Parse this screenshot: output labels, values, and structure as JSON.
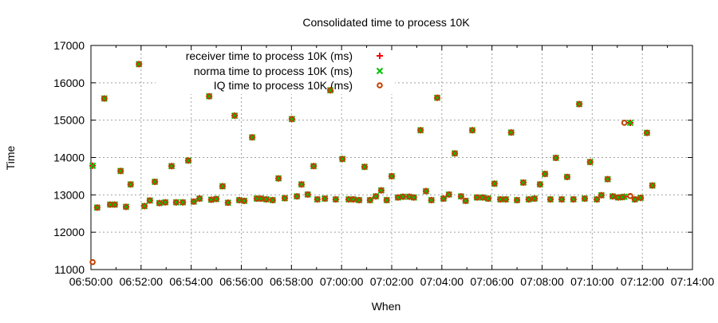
{
  "chart_data": {
    "type": "scatter",
    "title": "Consolidated time to process 10K",
    "xlabel": "When",
    "ylabel": "Time",
    "xlim": [
      "06:50:00",
      "07:14:00"
    ],
    "ylim": [
      11000,
      17000
    ],
    "x_ticks": [
      "06:50:00",
      "06:52:00",
      "06:54:00",
      "06:56:00",
      "06:58:00",
      "07:00:00",
      "07:02:00",
      "07:04:00",
      "07:06:00",
      "07:08:00",
      "07:10:00",
      "07:12:00",
      "07:14:00"
    ],
    "y_ticks": [
      "11000",
      "12000",
      "13000",
      "14000",
      "15000",
      "16000",
      "17000"
    ],
    "grid": true,
    "legend_position": "top-left",
    "x": [
      "06:50:04",
      "06:50:15",
      "06:50:32",
      "06:50:46",
      "06:50:57",
      "06:51:11",
      "06:51:24",
      "06:51:35",
      "06:51:55",
      "06:52:08",
      "06:52:21",
      "06:52:33",
      "06:52:44",
      "06:52:58",
      "06:53:13",
      "06:53:24",
      "06:53:40",
      "06:53:53",
      "06:54:06",
      "06:54:20",
      "06:54:43",
      "06:54:48",
      "06:55:00",
      "06:55:15",
      "06:55:28",
      "06:55:44",
      "06:55:55",
      "06:56:07",
      "06:56:26",
      "06:56:37",
      "06:56:47",
      "06:57:00",
      "06:57:15",
      "06:57:29",
      "06:57:44",
      "06:58:01",
      "06:58:13",
      "06:58:24",
      "06:58:39",
      "06:58:53",
      "06:59:02",
      "06:59:20",
      "06:59:33",
      "06:59:46",
      "07:00:02",
      "07:00:17",
      "07:00:28",
      "07:00:42",
      "07:00:55",
      "07:01:08",
      "07:01:22",
      "07:01:35",
      "07:01:48",
      "07:02:00",
      "07:02:15",
      "07:02:27",
      "07:02:42",
      "07:02:53",
      "07:03:09",
      "07:03:22",
      "07:03:35",
      "07:03:49",
      "07:04:04",
      "07:04:17",
      "07:04:31",
      "07:04:46",
      "07:04:57",
      "07:05:13",
      "07:05:24",
      "07:05:38",
      "07:05:51",
      "07:06:06",
      "07:06:20",
      "07:06:33",
      "07:06:46",
      "07:07:00",
      "07:07:15",
      "07:07:28",
      "07:07:42",
      "07:07:55",
      "07:08:07",
      "07:08:20",
      "07:08:33",
      "07:08:47",
      "07:09:00",
      "07:09:15",
      "07:09:29",
      "07:09:42",
      "07:09:55",
      "07:10:11",
      "07:10:22",
      "07:10:37",
      "07:10:49",
      "07:11:02",
      "07:11:12",
      "07:11:17",
      "07:11:31",
      "07:11:42",
      "07:11:56",
      "07:12:11",
      "07:12:24"
    ],
    "series": [
      {
        "name": "receiver time to process 10K (ms)",
        "color": "#ff0000",
        "marker": "plus",
        "values": [
          13780,
          12660,
          15580,
          12740,
          12740,
          13640,
          12680,
          13280,
          16500,
          12700,
          12850,
          13350,
          12780,
          12800,
          13770,
          12800,
          12800,
          13920,
          12820,
          12900,
          15640,
          12870,
          12890,
          13230,
          12790,
          15120,
          12860,
          12840,
          14540,
          12900,
          12900,
          12880,
          12860,
          13440,
          12910,
          15030,
          12960,
          13280,
          13010,
          13770,
          12880,
          12900,
          15800,
          12880,
          13960,
          12880,
          12880,
          12860,
          13750,
          12860,
          12960,
          13120,
          12860,
          13500,
          12930,
          12950,
          12950,
          12930,
          14730,
          13100,
          12860,
          15600,
          12900,
          13010,
          14110,
          12960,
          12840,
          14730,
          12930,
          12930,
          12900,
          13300,
          12880,
          12880,
          14670,
          12860,
          13330,
          12880,
          12900,
          13280,
          13560,
          12880,
          13990,
          12880,
          13480,
          12880,
          15430,
          12900,
          13880,
          12880,
          12990,
          13420,
          12960,
          12930,
          12940,
          12950,
          14930,
          12880,
          12920,
          14660,
          13250
        ]
      },
      {
        "name": "norma time to process 10K (ms)",
        "color": "#00c000",
        "marker": "cross",
        "values": [
          13780,
          12660,
          15580,
          12740,
          12740,
          13640,
          12680,
          13280,
          16500,
          12700,
          12850,
          13350,
          12780,
          12800,
          13770,
          12800,
          12800,
          13920,
          12820,
          12900,
          15640,
          12870,
          12890,
          13230,
          12790,
          15120,
          12860,
          12840,
          14540,
          12900,
          12900,
          12880,
          12860,
          13440,
          12910,
          15030,
          12960,
          13280,
          13010,
          13770,
          12880,
          12900,
          15800,
          12880,
          13960,
          12880,
          12880,
          12860,
          13750,
          12860,
          12960,
          13120,
          12860,
          13500,
          12930,
          12950,
          12950,
          12930,
          14730,
          13100,
          12860,
          15600,
          12900,
          13010,
          14110,
          12960,
          12840,
          14730,
          12930,
          12930,
          12900,
          13300,
          12880,
          12880,
          14670,
          12860,
          13330,
          12880,
          12900,
          13280,
          13560,
          12880,
          13990,
          12880,
          13480,
          12880,
          15430,
          12900,
          13880,
          12880,
          12990,
          13420,
          12960,
          12930,
          12940,
          12950,
          14930,
          12880,
          12920,
          14660,
          13250
        ]
      },
      {
        "name": "IQ time to process 10K (ms)",
        "color": "#c04000",
        "marker": "circle",
        "values": [
          11200,
          12660,
          15580,
          12740,
          12740,
          13640,
          12680,
          13280,
          16500,
          12700,
          12850,
          13350,
          12780,
          12800,
          13770,
          12800,
          12800,
          13920,
          12820,
          12900,
          15640,
          12870,
          12890,
          13230,
          12790,
          15120,
          12860,
          12840,
          14540,
          12900,
          12900,
          12880,
          12860,
          13440,
          12910,
          15030,
          12960,
          13280,
          13010,
          13770,
          12880,
          12900,
          15800,
          12880,
          13960,
          12880,
          12880,
          12860,
          13750,
          12860,
          12960,
          13120,
          12860,
          13500,
          12930,
          12950,
          12950,
          12930,
          14730,
          13100,
          12860,
          15600,
          12900,
          13010,
          14110,
          12960,
          12840,
          14730,
          12930,
          12930,
          12900,
          13300,
          12880,
          12880,
          14670,
          12860,
          13330,
          12880,
          12900,
          13280,
          13560,
          12880,
          13990,
          12880,
          13480,
          12880,
          15430,
          12900,
          13880,
          12880,
          12990,
          13420,
          12960,
          12930,
          12940,
          14930,
          12970,
          12880,
          12920,
          14660,
          13250
        ]
      }
    ]
  }
}
